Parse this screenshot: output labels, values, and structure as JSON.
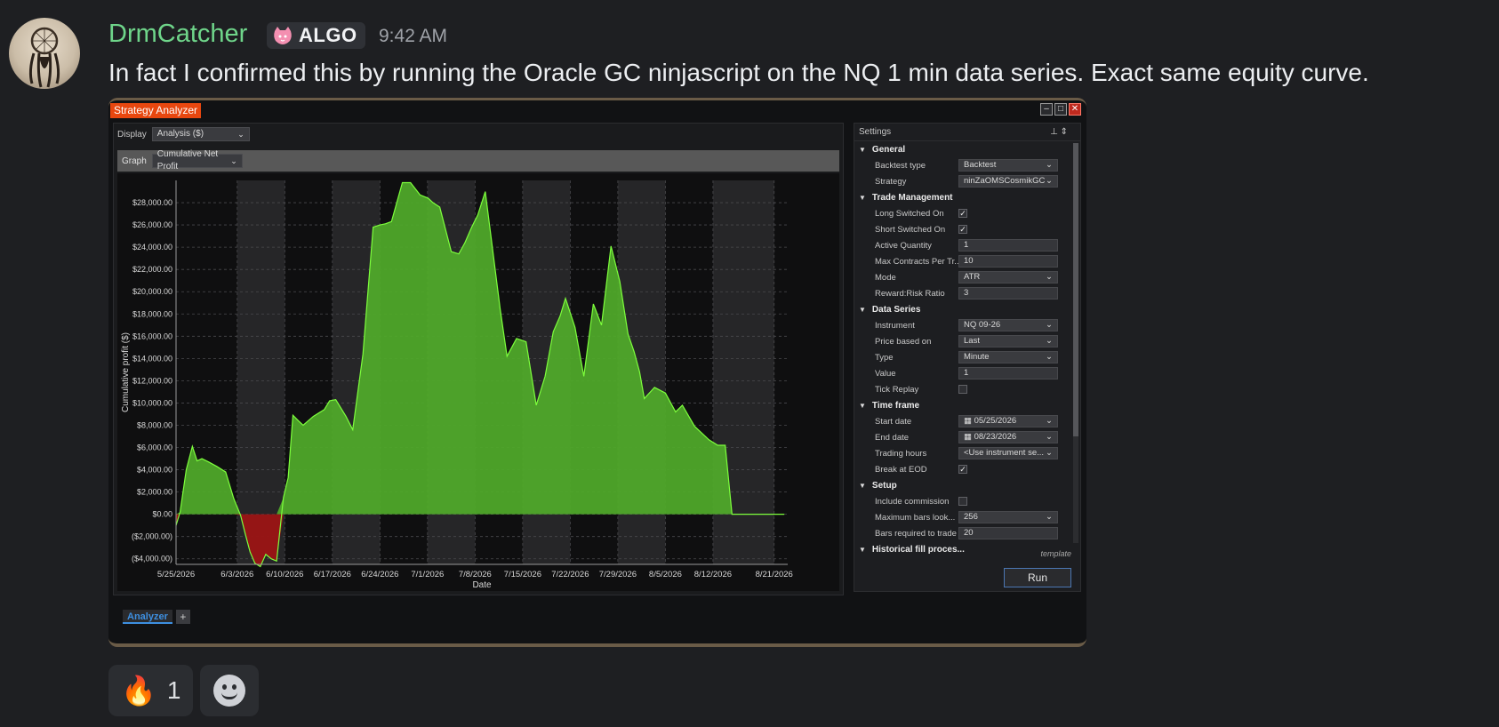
{
  "message": {
    "username": "DrmCatcher",
    "badge": {
      "icon": "pink-cat-icon",
      "label": "ALGO"
    },
    "timestamp": "9:42 AM",
    "content": "In fact I confirmed this by running the Oracle GC ninjascript on the NQ 1 min data series. Exact same equity curve."
  },
  "analyzer": {
    "window_title": "Strategy Analyzer",
    "display_label": "Display",
    "display_value": "Analysis ($)",
    "graph_label": "Graph",
    "graph_value": "Cumulative Net Profit",
    "tab_label": "Analyzer",
    "tab_add": "+",
    "settings": {
      "title": "Settings",
      "sections": [
        {
          "name": "General",
          "props": [
            {
              "label": "Backtest type",
              "type": "select",
              "value": "Backtest"
            },
            {
              "label": "Strategy",
              "type": "select",
              "value": "ninZaOMSCosmikGC"
            }
          ]
        },
        {
          "name": "Trade Management",
          "props": [
            {
              "label": "Long Switched On",
              "type": "check",
              "value": "✓"
            },
            {
              "label": "Short Switched On",
              "type": "check",
              "value": "✓"
            },
            {
              "label": "Active Quantity",
              "type": "text",
              "value": "1"
            },
            {
              "label": "Max Contracts Per Tr...",
              "type": "text",
              "value": "10"
            },
            {
              "label": "Mode",
              "type": "select",
              "value": "ATR"
            },
            {
              "label": "Reward:Risk Ratio",
              "type": "text",
              "value": "3"
            }
          ]
        },
        {
          "name": "Data Series",
          "props": [
            {
              "label": "Instrument",
              "type": "select",
              "value": "NQ 09-26"
            },
            {
              "label": "Price based on",
              "type": "select",
              "value": "Last"
            },
            {
              "label": "Type",
              "type": "select",
              "value": "Minute"
            },
            {
              "label": "Value",
              "type": "text",
              "value": "1"
            },
            {
              "label": "Tick Replay",
              "type": "check",
              "value": ""
            }
          ]
        },
        {
          "name": "Time frame",
          "props": [
            {
              "label": "Start date",
              "type": "select",
              "value": "▦ 05/25/2026"
            },
            {
              "label": "End date",
              "type": "select",
              "value": "▦ 08/23/2026"
            },
            {
              "label": "Trading hours",
              "type": "select",
              "value": "<Use instrument se..."
            },
            {
              "label": "Break at EOD",
              "type": "check",
              "value": "✓"
            }
          ]
        },
        {
          "name": "Setup",
          "props": [
            {
              "label": "Include commission",
              "type": "check",
              "value": ""
            },
            {
              "label": "Maximum bars look...",
              "type": "select",
              "value": "256"
            },
            {
              "label": "Bars required to trade",
              "type": "text",
              "value": "20"
            }
          ]
        },
        {
          "name": "Historical fill proces...",
          "props": []
        }
      ],
      "template_label": "template",
      "run_label": "Run"
    }
  },
  "chart_data": {
    "type": "area",
    "title": "",
    "xlabel": "Date",
    "ylabel": "Cumulative profit ($)",
    "ylim": [
      -4500,
      30000
    ],
    "y_ticks": [
      -4000,
      -2000,
      0,
      2000,
      4000,
      6000,
      8000,
      10000,
      12000,
      14000,
      16000,
      18000,
      20000,
      22000,
      24000,
      26000,
      28000
    ],
    "y_tick_labels": [
      "($4,000.00)",
      "($2,000.00)",
      "$0.00",
      "$2,000.00",
      "$4,000.00",
      "$6,000.00",
      "$8,000.00",
      "$10,000.00",
      "$12,000.00",
      "$14,000.00",
      "$16,000.00",
      "$18,000.00",
      "$20,000.00",
      "$22,000.00",
      "$24,000.00",
      "$26,000.00",
      "$28,000.00"
    ],
    "x_tick_labels": [
      "5/25/2026",
      "6/3/2026",
      "6/10/2026",
      "6/17/2026",
      "6/24/2026",
      "7/1/2026",
      "7/8/2026",
      "7/15/2026",
      "7/22/2026",
      "7/29/2026",
      "8/5/2026",
      "8/12/2026",
      "8/21/2026"
    ],
    "x_tick_days": [
      0,
      9,
      16,
      23,
      30,
      37,
      44,
      51,
      58,
      65,
      72,
      79,
      88
    ],
    "xlim": [
      0,
      90
    ],
    "grid": true,
    "positive_color": "#4fa82a",
    "negative_color": "#9b1414",
    "line_color": "#7dff3c",
    "series": [
      {
        "x": [
          0,
          0.6,
          1.5,
          2.4,
          3.1,
          3.8,
          4.8,
          6.0,
          7.3,
          8.5,
          9.5,
          10.2,
          10.9,
          11.6,
          12.4,
          13.2,
          14.0,
          14.8,
          15.8,
          16.5,
          17.2,
          18.0,
          18.7,
          20.2,
          21.8,
          22.6,
          23.5,
          25.0,
          26.0,
          27.5,
          29.0,
          30.0,
          30.8,
          31.7,
          33.3,
          34.5,
          35.9,
          37.1,
          37.8,
          38.8,
          40.5,
          41.6,
          42.5,
          43.5,
          44.4,
          45.5,
          47.7,
          48.7,
          50.1,
          51.5,
          53.0,
          54.3,
          55.5,
          56.5,
          57.3,
          58.7,
          60.0,
          61.4,
          62.6,
          64.0,
          65.3,
          66.5,
          67.4,
          68.2,
          68.9,
          70.4,
          72.0,
          73.5,
          74.5,
          76.3,
          78.4,
          79.7,
          80.8,
          81.8,
          82.8,
          84.5,
          86.4,
          87.4,
          88.5,
          89.5
        ],
        "y": [
          -1000,
          200,
          4000,
          6100,
          4800,
          5000,
          4700,
          4300,
          3800,
          1400,
          -100,
          -1800,
          -3400,
          -4400,
          -4700,
          -3600,
          -4000,
          -4200,
          1500,
          3300,
          8900,
          8400,
          8000,
          8800,
          9400,
          10200,
          10300,
          8800,
          7600,
          14400,
          25800,
          26000,
          26100,
          26300,
          29800,
          29800,
          28700,
          28400,
          28000,
          27600,
          23600,
          23400,
          24400,
          25800,
          26900,
          29000,
          18400,
          14200,
          15800,
          15500,
          9800,
          12400,
          16400,
          17800,
          19400,
          16800,
          12400,
          18900,
          17000,
          24100,
          20900,
          16200,
          14600,
          12800,
          10400,
          11400,
          10900,
          9200,
          9800,
          7900,
          6700,
          6200,
          6200,
          0,
          0,
          0,
          0,
          0,
          0,
          0
        ]
      }
    ]
  }
}
